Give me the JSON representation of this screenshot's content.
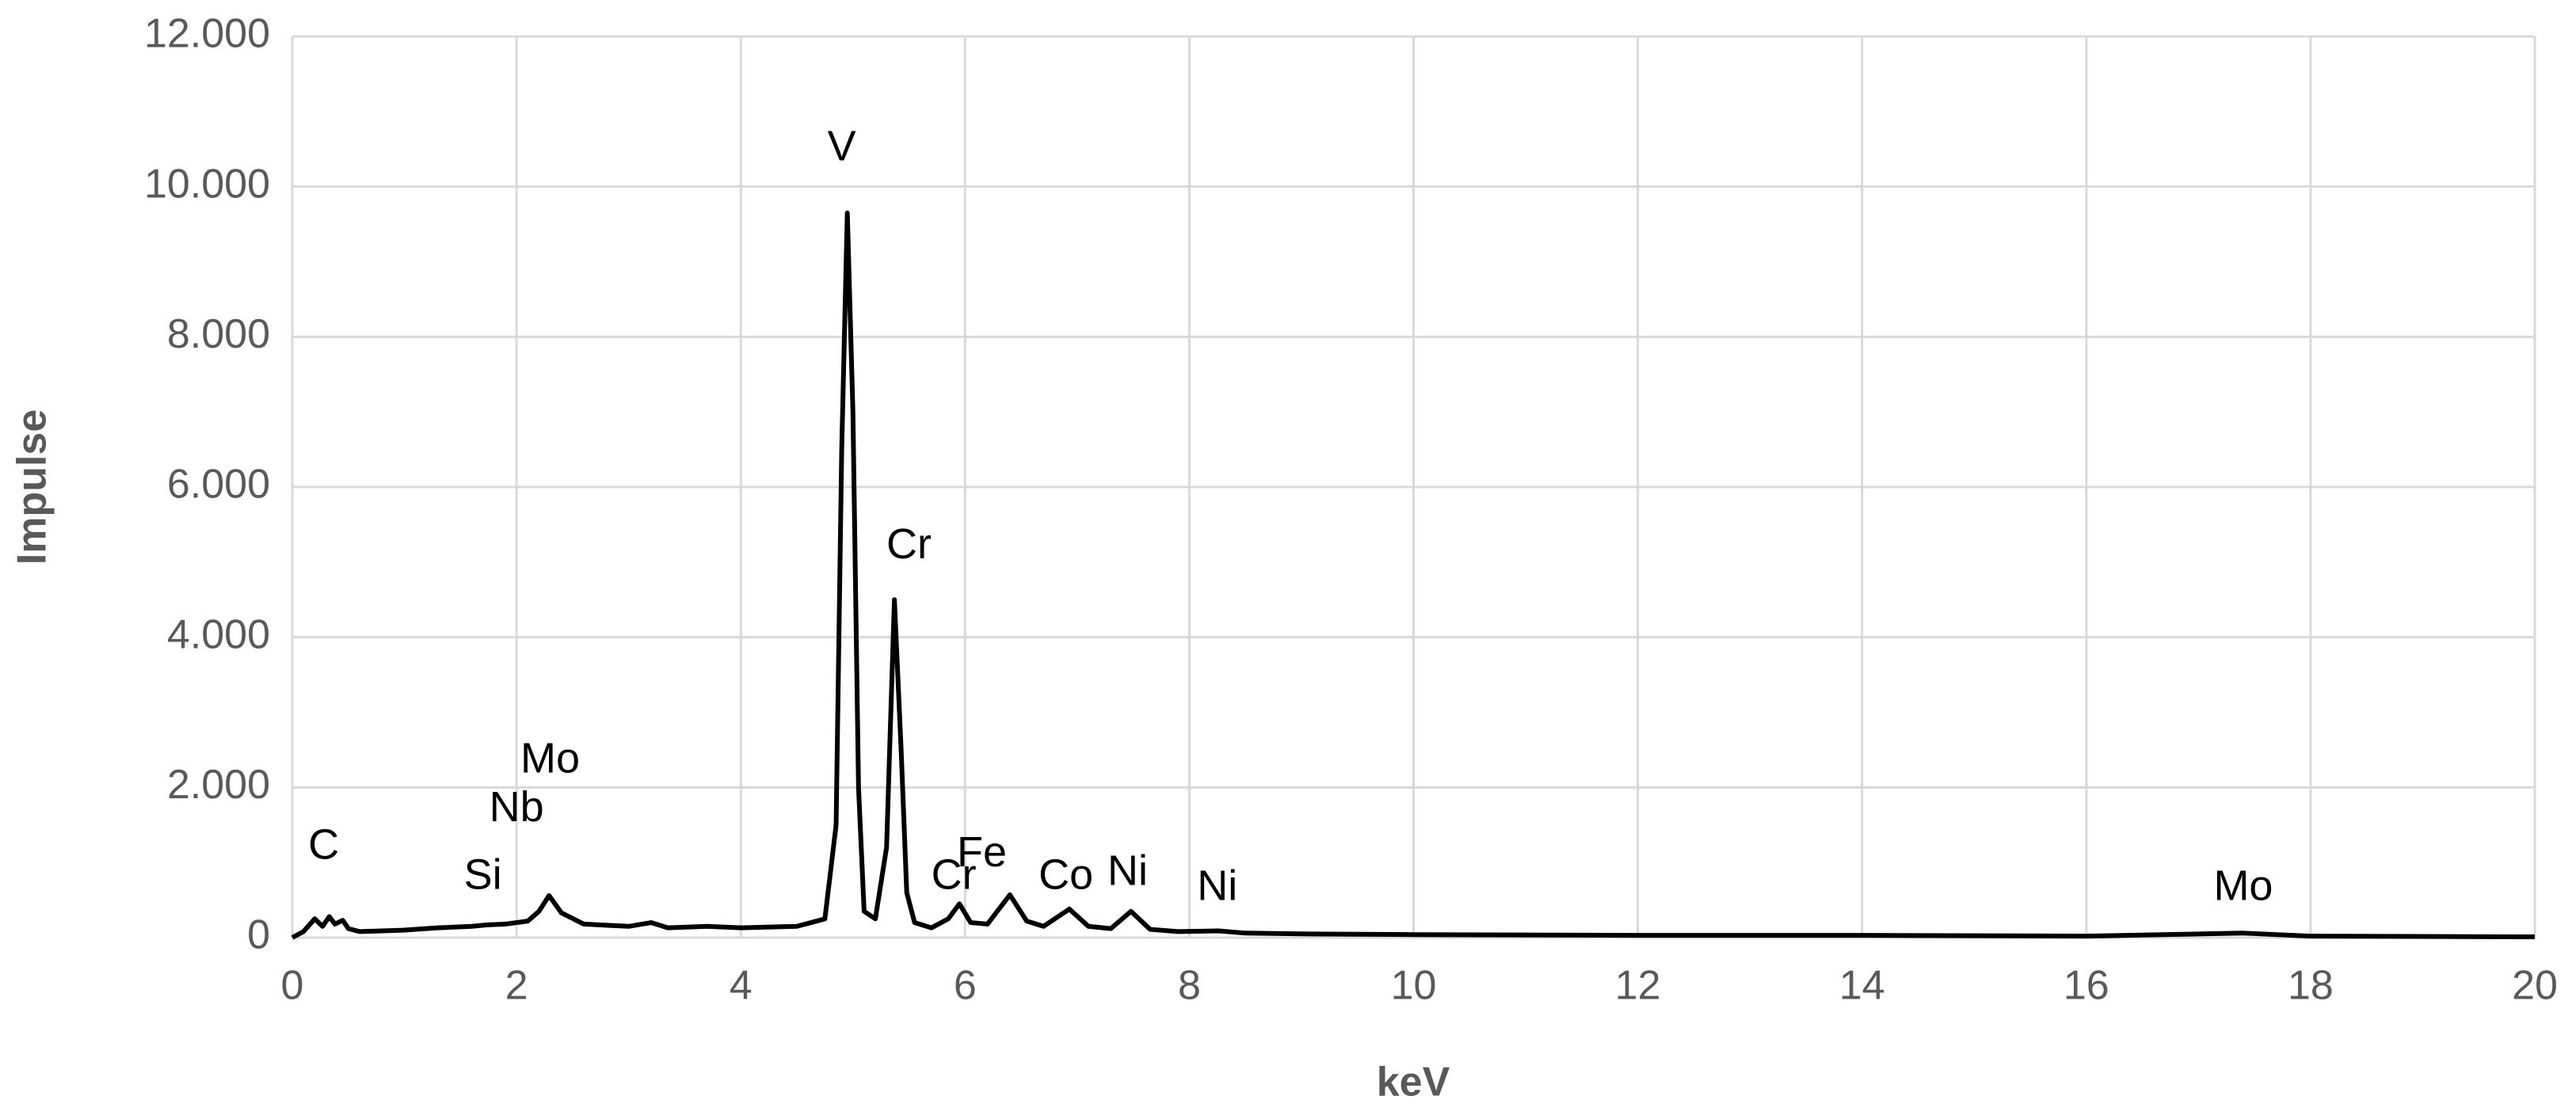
{
  "chart_data": {
    "type": "line",
    "x_label": "keV",
    "y_label": "Impulse",
    "color": "#000000",
    "grid": true,
    "xlim": [
      0,
      20
    ],
    "xticks": [
      0,
      2,
      4,
      6,
      8,
      10,
      12,
      14,
      16,
      18,
      20
    ],
    "ylim": [
      0,
      12000
    ],
    "yticks": [
      0,
      {
        "value": 2000,
        "label": "2.000"
      },
      {
        "value": 4000,
        "label": "4.000"
      },
      {
        "value": 6000,
        "label": "6.000"
      },
      {
        "value": 8000,
        "label": "8.000"
      },
      {
        "value": 10000,
        "label": "10.000"
      },
      {
        "value": 12000,
        "label": "12.000"
      }
    ],
    "x": [
      0,
      0.1,
      0.2,
      0.27,
      0.33,
      0.38,
      0.45,
      0.5,
      0.6,
      0.8,
      1.0,
      1.3,
      1.6,
      1.74,
      1.9,
      2.1,
      2.2,
      2.29,
      2.4,
      2.6,
      3.0,
      3.2,
      3.35,
      3.7,
      4.0,
      4.5,
      4.75,
      4.85,
      4.9,
      4.95,
      5.0,
      5.05,
      5.1,
      5.2,
      5.3,
      5.37,
      5.43,
      5.48,
      5.55,
      5.7,
      5.85,
      5.95,
      6.05,
      6.2,
      6.4,
      6.55,
      6.7,
      6.93,
      7.1,
      7.3,
      7.48,
      7.65,
      7.9,
      8.26,
      8.5,
      9,
      10,
      12,
      14,
      16,
      17.4,
      18,
      20
    ],
    "values": [
      0,
      80,
      250,
      150,
      280,
      180,
      230,
      120,
      80,
      90,
      100,
      130,
      150,
      170,
      180,
      220,
      350,
      560,
      330,
      180,
      150,
      200,
      130,
      150,
      130,
      150,
      250,
      1500,
      6500,
      9650,
      7000,
      2000,
      350,
      250,
      1200,
      4500,
      2500,
      600,
      200,
      130,
      250,
      450,
      200,
      180,
      570,
      220,
      150,
      380,
      150,
      120,
      350,
      110,
      80,
      90,
      60,
      50,
      40,
      30,
      30,
      20,
      60,
      20,
      10
    ],
    "annotations": [
      {
        "text": "C",
        "x": 0.28,
        "y": 1200
      },
      {
        "text": "Si",
        "x": 1.7,
        "y": 800
      },
      {
        "text": "Nb",
        "x": 2.0,
        "y": 1700
      },
      {
        "text": "Mo",
        "x": 2.3,
        "y": 2350
      },
      {
        "text": "V",
        "x": 4.9,
        "y": 10500
      },
      {
        "text": "Cr",
        "x": 5.5,
        "y": 5200
      },
      {
        "text": "Cr",
        "x": 5.9,
        "y": 800
      },
      {
        "text": "Fe",
        "x": 6.15,
        "y": 1100
      },
      {
        "text": "Co",
        "x": 6.9,
        "y": 800
      },
      {
        "text": "Ni",
        "x": 7.45,
        "y": 850
      },
      {
        "text": "Ni",
        "x": 8.25,
        "y": 650
      },
      {
        "text": "Mo",
        "x": 17.4,
        "y": 650
      }
    ]
  }
}
